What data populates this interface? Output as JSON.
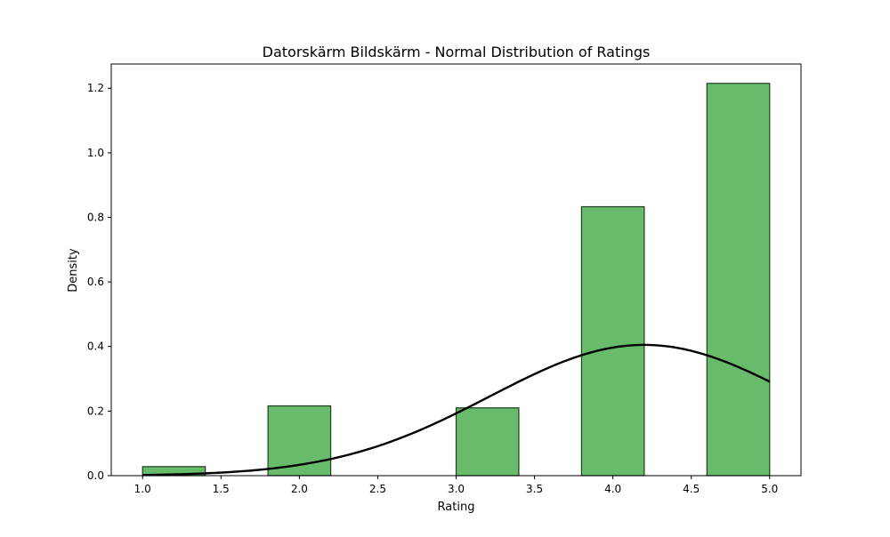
{
  "chart_data": {
    "type": "bar",
    "title": "Datorskärm Bildskärm - Normal Distribution of Ratings",
    "xlabel": "Rating",
    "ylabel": "Density",
    "xlim": [
      0.8,
      5.2
    ],
    "ylim": [
      0,
      1.275
    ],
    "x_ticks": [
      "1.0",
      "1.5",
      "2.0",
      "2.5",
      "3.0",
      "3.5",
      "4.0",
      "4.5",
      "5.0"
    ],
    "y_ticks": [
      "0.0",
      "0.2",
      "0.4",
      "0.6",
      "0.8",
      "1.0",
      "1.2"
    ],
    "bars": [
      {
        "x0": 1.0,
        "x1": 1.4,
        "value": 0.028
      },
      {
        "x0": 1.4,
        "x1": 1.8,
        "value": 0.0
      },
      {
        "x0": 1.8,
        "x1": 2.2,
        "value": 0.216
      },
      {
        "x0": 2.2,
        "x1": 2.6,
        "value": 0.0
      },
      {
        "x0": 2.6,
        "x1": 3.0,
        "value": 0.0
      },
      {
        "x0": 3.0,
        "x1": 3.4,
        "value": 0.21
      },
      {
        "x0": 3.4,
        "x1": 3.8,
        "value": 0.0
      },
      {
        "x0": 3.8,
        "x1": 4.2,
        "value": 0.833
      },
      {
        "x0": 4.2,
        "x1": 4.6,
        "value": 0.0
      },
      {
        "x0": 4.6,
        "x1": 5.0,
        "value": 1.215
      }
    ],
    "normal_fit": {
      "mean": 4.2,
      "std": 0.985,
      "x_range": [
        1.0,
        5.0
      ]
    },
    "bar_color": "#4caf50",
    "bar_edge_color": "#1f3d1f",
    "curve_color": "#000000",
    "grid": false,
    "legend": "none"
  }
}
